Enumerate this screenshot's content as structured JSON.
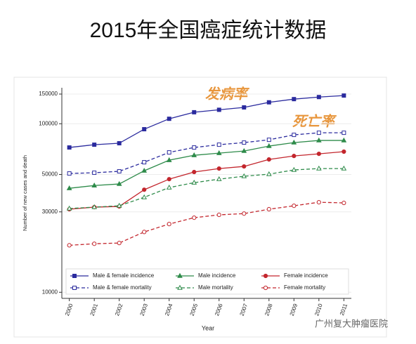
{
  "chart_data": {
    "type": "line",
    "title": "2015年全国癌症统计数据",
    "xlabel": "Year",
    "ylabel": "Number of new cases and death",
    "annotations": [
      "发病率",
      "死亡率"
    ],
    "watermark": "广州复大肿瘤医院",
    "x": [
      2000,
      2001,
      2002,
      2003,
      2004,
      2005,
      2006,
      2007,
      2008,
      2009,
      2010,
      2011
    ],
    "xlim": [
      1999.7,
      2011.3
    ],
    "xticks": [
      2000,
      2001,
      2002,
      2003,
      2004,
      2005,
      2006,
      2007,
      2008,
      2009,
      2010,
      2011
    ],
    "ylim": [
      9200,
      163500
    ],
    "yticks": [
      10000,
      30000,
      50000,
      100000,
      150000
    ],
    "log_y": true,
    "grid": true,
    "series": [
      {
        "name": "Male & female incidence",
        "color": "#2b2b9e",
        "dashed": false,
        "marker": "square",
        "filled": true,
        "values": [
          72300,
          75100,
          76600,
          92800,
          107000,
          117000,
          121000,
          125000,
          134000,
          140000,
          144000,
          147000
        ]
      },
      {
        "name": "Male incidence",
        "color": "#2e8b4a",
        "dashed": false,
        "marker": "triangle",
        "filled": true,
        "values": [
          41400,
          43000,
          43900,
          52600,
          60800,
          65000,
          66900,
          68900,
          73700,
          77300,
          79600,
          79600
        ]
      },
      {
        "name": "Female incidence",
        "color": "#c3262d",
        "dashed": false,
        "marker": "circle",
        "filled": true,
        "values": [
          31100,
          32000,
          32300,
          40600,
          46900,
          51700,
          54200,
          55800,
          61400,
          64400,
          66300,
          68300
        ]
      },
      {
        "name": "Male & female mortality",
        "color": "#2b2b9e",
        "dashed": true,
        "marker": "square",
        "filled": false,
        "values": [
          50700,
          51200,
          52200,
          59100,
          67600,
          72300,
          75100,
          77300,
          80300,
          85900,
          88400,
          88400
        ]
      },
      {
        "name": "Male mortality",
        "color": "#2e8b4a",
        "dashed": true,
        "marker": "triangle",
        "filled": false,
        "values": [
          31400,
          32000,
          32600,
          36600,
          41800,
          44700,
          46900,
          48800,
          50200,
          53200,
          54200,
          54200
        ]
      },
      {
        "name": "Female mortality",
        "color": "#c3262d",
        "dashed": true,
        "marker": "circle",
        "filled": false,
        "values": [
          19000,
          19400,
          19600,
          22800,
          25400,
          27700,
          28800,
          29300,
          31100,
          32600,
          34200,
          33900
        ]
      }
    ]
  }
}
